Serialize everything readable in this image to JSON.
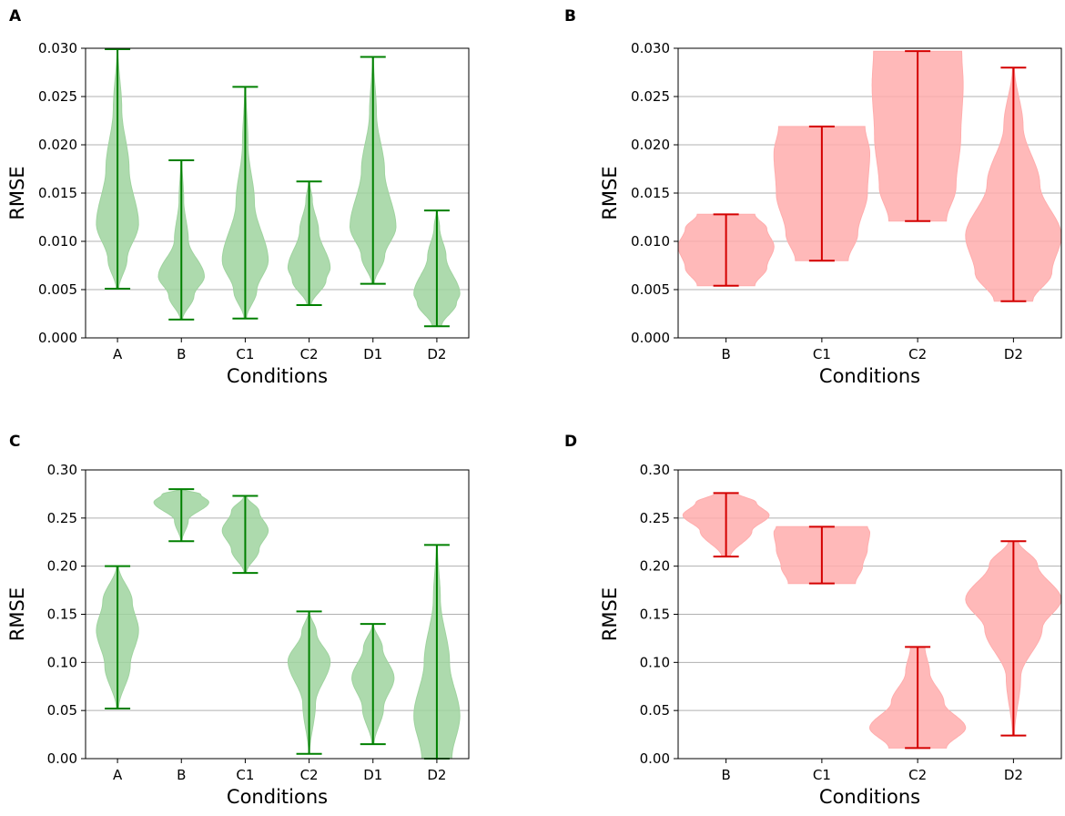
{
  "chart_data": [
    {
      "panel": "A",
      "type": "violin",
      "xlabel": "Conditions",
      "ylabel": "RMSE",
      "ylim": [
        0,
        0.03
      ],
      "yticks": [
        "0.000",
        "0.005",
        "0.010",
        "0.015",
        "0.020",
        "0.025",
        "0.030"
      ],
      "grid": "horizontal",
      "color": "#008000",
      "fill": "#9fd39f",
      "categories": [
        "A",
        "B",
        "C1",
        "C2",
        "D1",
        "D2"
      ],
      "violins": [
        {
          "min": 0.0051,
          "max": 0.0299,
          "mode": 0.0115,
          "width": 0.33,
          "profile": [
            [
              0,
              0.06
            ],
            [
              0.12,
              0.45
            ],
            [
              0.27,
              1.0
            ],
            [
              0.5,
              0.55
            ],
            [
              0.75,
              0.2
            ],
            [
              1,
              0.02
            ]
          ]
        },
        {
          "min": 0.0019,
          "max": 0.0184,
          "mode": 0.006,
          "width": 0.36,
          "profile": [
            [
              0,
              0.05
            ],
            [
              0.15,
              0.55
            ],
            [
              0.27,
              1.0
            ],
            [
              0.5,
              0.3
            ],
            [
              0.75,
              0.1
            ],
            [
              1,
              0.02
            ]
          ]
        },
        {
          "min": 0.002,
          "max": 0.026,
          "mode": 0.008,
          "width": 0.36,
          "profile": [
            [
              0,
              0.05
            ],
            [
              0.12,
              0.5
            ],
            [
              0.25,
              1.0
            ],
            [
              0.5,
              0.4
            ],
            [
              0.75,
              0.12
            ],
            [
              1,
              0.02
            ]
          ]
        },
        {
          "min": 0.0034,
          "max": 0.0162,
          "mode": 0.0065,
          "width": 0.33,
          "profile": [
            [
              0,
              0.1
            ],
            [
              0.2,
              0.8
            ],
            [
              0.3,
              1.0
            ],
            [
              0.6,
              0.45
            ],
            [
              0.85,
              0.15
            ],
            [
              1,
              0.02
            ]
          ]
        },
        {
          "min": 0.0056,
          "max": 0.0291,
          "mode": 0.0115,
          "width": 0.36,
          "profile": [
            [
              0,
              0.05
            ],
            [
              0.12,
              0.5
            ],
            [
              0.25,
              1.0
            ],
            [
              0.5,
              0.5
            ],
            [
              0.75,
              0.15
            ],
            [
              1,
              0.02
            ]
          ]
        },
        {
          "min": 0.0012,
          "max": 0.0132,
          "mode": 0.004,
          "width": 0.36,
          "profile": [
            [
              0,
              0.2
            ],
            [
              0.2,
              0.85
            ],
            [
              0.28,
              1.0
            ],
            [
              0.6,
              0.4
            ],
            [
              0.85,
              0.12
            ],
            [
              1,
              0.02
            ]
          ]
        }
      ]
    },
    {
      "panel": "B",
      "type": "violin",
      "xlabel": "Conditions",
      "ylabel": "RMSE",
      "ylim": [
        0,
        0.03
      ],
      "yticks": [
        "0.000",
        "0.005",
        "0.010",
        "0.015",
        "0.020",
        "0.025",
        "0.030"
      ],
      "grid": "horizontal",
      "color": "#d40000",
      "fill": "#ffadad",
      "categories": [
        "B",
        "C1",
        "C2",
        "D2"
      ],
      "violins": [
        {
          "min": 0.0054,
          "max": 0.0128,
          "mode": 0.0095,
          "width": 0.5,
          "profile": [
            [
              0,
              0.6
            ],
            [
              0.25,
              0.85
            ],
            [
              0.55,
              1.0
            ],
            [
              0.8,
              0.85
            ],
            [
              1,
              0.6
            ]
          ]
        },
        {
          "min": 0.008,
          "max": 0.0219,
          "mode": 0.0155,
          "width": 0.5,
          "profile": [
            [
              0,
              0.55
            ],
            [
              0.2,
              0.75
            ],
            [
              0.5,
              0.95
            ],
            [
              0.8,
              1.0
            ],
            [
              1,
              0.9
            ]
          ]
        },
        {
          "min": 0.0121,
          "max": 0.0297,
          "mode": 0.021,
          "width": 0.5,
          "profile": [
            [
              0,
              0.6
            ],
            [
              0.2,
              0.8
            ],
            [
              0.5,
              0.9
            ],
            [
              0.8,
              0.95
            ],
            [
              1,
              0.92
            ]
          ]
        },
        {
          "min": 0.0038,
          "max": 0.028,
          "mode": 0.01,
          "width": 0.5,
          "profile": [
            [
              0,
              0.4
            ],
            [
              0.12,
              0.8
            ],
            [
              0.28,
              1.0
            ],
            [
              0.5,
              0.55
            ],
            [
              0.75,
              0.2
            ],
            [
              1,
              0.02
            ]
          ]
        }
      ]
    },
    {
      "panel": "C",
      "type": "violin",
      "xlabel": "Conditions",
      "ylabel": "RMSE",
      "ylim": [
        0,
        0.3
      ],
      "yticks": [
        "0.00",
        "0.05",
        "0.10",
        "0.15",
        "0.20",
        "0.25",
        "0.30"
      ],
      "grid": "horizontal",
      "color": "#008000",
      "fill": "#9fd39f",
      "categories": [
        "A",
        "B",
        "C1",
        "C2",
        "D1",
        "D2"
      ],
      "violins": [
        {
          "min": 0.052,
          "max": 0.2,
          "mode": 0.135,
          "width": 0.33,
          "profile": [
            [
              0,
              0.05
            ],
            [
              0.3,
              0.6
            ],
            [
              0.55,
              1.0
            ],
            [
              0.75,
              0.7
            ],
            [
              1,
              0.05
            ]
          ]
        },
        {
          "min": 0.226,
          "max": 0.28,
          "mode": 0.268,
          "width": 0.43,
          "profile": [
            [
              0,
              0.02
            ],
            [
              0.4,
              0.25
            ],
            [
              0.75,
              1.0
            ],
            [
              0.9,
              0.7
            ],
            [
              1,
              0.05
            ]
          ]
        },
        {
          "min": 0.193,
          "max": 0.273,
          "mode": 0.24,
          "width": 0.36,
          "profile": [
            [
              0,
              0.05
            ],
            [
              0.3,
              0.6
            ],
            [
              0.55,
              1.0
            ],
            [
              0.8,
              0.6
            ],
            [
              1,
              0.05
            ]
          ]
        },
        {
          "min": 0.005,
          "max": 0.153,
          "mode": 0.105,
          "width": 0.33,
          "profile": [
            [
              0,
              0.02
            ],
            [
              0.35,
              0.3
            ],
            [
              0.65,
              1.0
            ],
            [
              0.85,
              0.35
            ],
            [
              1,
              0.02
            ]
          ]
        },
        {
          "min": 0.015,
          "max": 0.14,
          "mode": 0.085,
          "width": 0.33,
          "profile": [
            [
              0,
              0.05
            ],
            [
              0.3,
              0.5
            ],
            [
              0.55,
              1.0
            ],
            [
              0.8,
              0.45
            ],
            [
              1,
              0.02
            ]
          ]
        },
        {
          "min": 0.0,
          "max": 0.222,
          "mode": 0.05,
          "width": 0.36,
          "profile": [
            [
              0,
              0.65
            ],
            [
              0.2,
              1.0
            ],
            [
              0.45,
              0.55
            ],
            [
              0.75,
              0.15
            ],
            [
              1,
              0.02
            ]
          ]
        }
      ]
    },
    {
      "panel": "D",
      "type": "violin",
      "xlabel": "Conditions",
      "ylabel": "RMSE",
      "ylim": [
        0,
        0.3
      ],
      "yticks": [
        "0.00",
        "0.05",
        "0.10",
        "0.15",
        "0.20",
        "0.25",
        "0.30"
      ],
      "grid": "horizontal",
      "color": "#d40000",
      "fill": "#ffadad",
      "categories": [
        "B",
        "C1",
        "C2",
        "D2"
      ],
      "violins": [
        {
          "min": 0.21,
          "max": 0.276,
          "mode": 0.255,
          "width": 0.45,
          "profile": [
            [
              0,
              0.1
            ],
            [
              0.4,
              0.6
            ],
            [
              0.65,
              1.0
            ],
            [
              0.85,
              0.7
            ],
            [
              1,
              0.25
            ]
          ]
        },
        {
          "min": 0.182,
          "max": 0.241,
          "mode": 0.215,
          "width": 0.5,
          "profile": [
            [
              0,
              0.7
            ],
            [
              0.3,
              0.85
            ],
            [
              0.6,
              0.95
            ],
            [
              0.9,
              1.0
            ],
            [
              1,
              0.95
            ]
          ]
        },
        {
          "min": 0.011,
          "max": 0.116,
          "mode": 0.04,
          "width": 0.5,
          "profile": [
            [
              0,
              0.6
            ],
            [
              0.2,
              1.0
            ],
            [
              0.45,
              0.55
            ],
            [
              0.75,
              0.25
            ],
            [
              1,
              0.15
            ]
          ]
        },
        {
          "min": 0.024,
          "max": 0.226,
          "mode": 0.165,
          "width": 0.5,
          "profile": [
            [
              0,
              0.02
            ],
            [
              0.3,
              0.15
            ],
            [
              0.55,
              0.6
            ],
            [
              0.7,
              1.0
            ],
            [
              0.88,
              0.5
            ],
            [
              1,
              0.1
            ]
          ]
        }
      ]
    }
  ]
}
